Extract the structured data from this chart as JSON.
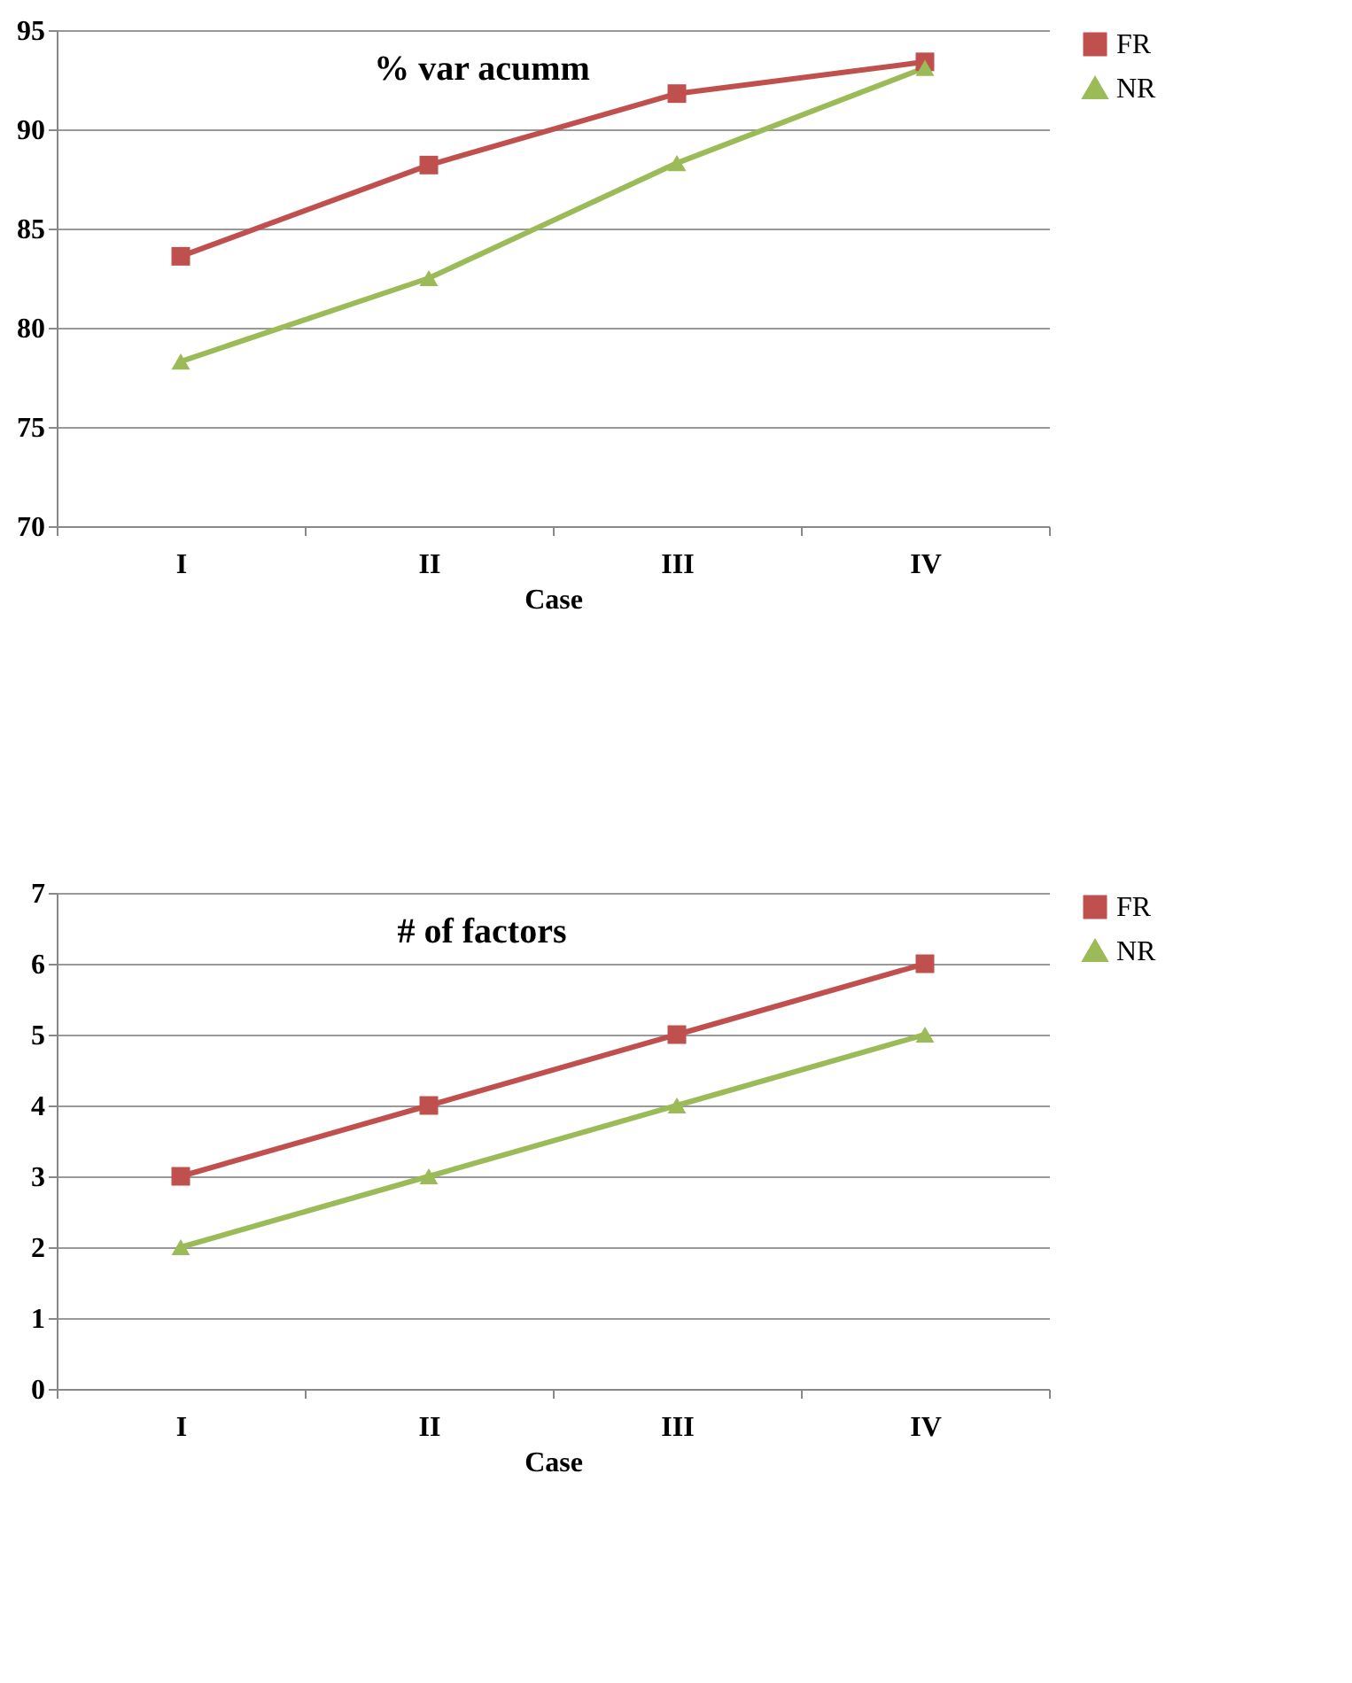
{
  "chart_data": [
    {
      "type": "line",
      "title": "% var acumm",
      "xlabel": "Case",
      "categories": [
        "I",
        "II",
        "III",
        "IV"
      ],
      "ylim": [
        70,
        95
      ],
      "yticks": [
        70,
        75,
        80,
        85,
        90,
        95
      ],
      "grid": "y",
      "legend": "right",
      "series": [
        {
          "name": "FR",
          "color": "#c0504d",
          "marker": "square",
          "values": [
            83.6,
            88.2,
            91.8,
            93.4
          ]
        },
        {
          "name": "NR",
          "color": "#9bbb59",
          "marker": "triangle",
          "values": [
            78.3,
            82.5,
            88.3,
            93.1
          ]
        }
      ]
    },
    {
      "type": "line",
      "title": "# of factors",
      "xlabel": "Case",
      "categories": [
        "I",
        "II",
        "III",
        "IV"
      ],
      "ylim": [
        0,
        7
      ],
      "yticks": [
        0,
        1,
        2,
        3,
        4,
        5,
        6,
        7
      ],
      "grid": "y",
      "legend": "right",
      "series": [
        {
          "name": "FR",
          "color": "#c0504d",
          "marker": "square",
          "values": [
            3,
            4,
            5,
            6
          ]
        },
        {
          "name": "NR",
          "color": "#9bbb59",
          "marker": "triangle",
          "values": [
            2,
            3,
            4,
            5
          ]
        }
      ]
    }
  ]
}
